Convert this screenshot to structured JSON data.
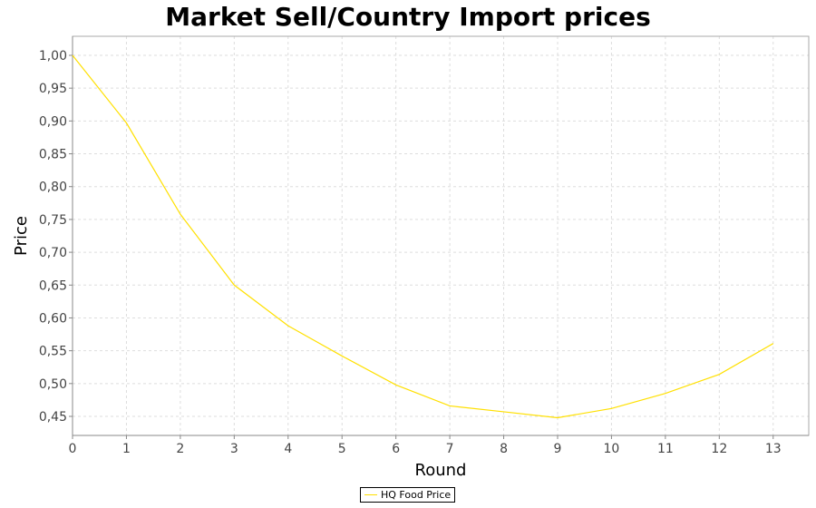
{
  "chart_data": {
    "type": "line",
    "title": "Market Sell/Country Import prices",
    "xlabel": "Round",
    "ylabel": "Price",
    "x": [
      0,
      1,
      2,
      3,
      4,
      5,
      6,
      7,
      8,
      9,
      10,
      11,
      12,
      13
    ],
    "series": [
      {
        "name": "HQ Food Price",
        "color": "#ffe000",
        "values": [
          1.0,
          0.897,
          0.758,
          0.65,
          0.588,
          0.542,
          0.498,
          0.466,
          0.457,
          0.448,
          0.462,
          0.485,
          0.514,
          0.561
        ]
      }
    ],
    "xlim": [
      0,
      13.66
    ],
    "ylim": [
      0.421,
      1.029
    ],
    "xticks": [
      "0",
      "1",
      "2",
      "3",
      "4",
      "5",
      "6",
      "7",
      "8",
      "9",
      "10",
      "11",
      "12",
      "13"
    ],
    "yticks": [
      0.45,
      0.5,
      0.55,
      0.6,
      0.65,
      0.7,
      0.75,
      0.8,
      0.85,
      0.9,
      0.95,
      1.0
    ],
    "ytick_labels": [
      "0,45",
      "0,50",
      "0,55",
      "0,60",
      "0,65",
      "0,70",
      "0,75",
      "0,80",
      "0,85",
      "0,90",
      "0,95",
      "1,00"
    ],
    "grid": true,
    "legend_position": "bottom-center"
  }
}
